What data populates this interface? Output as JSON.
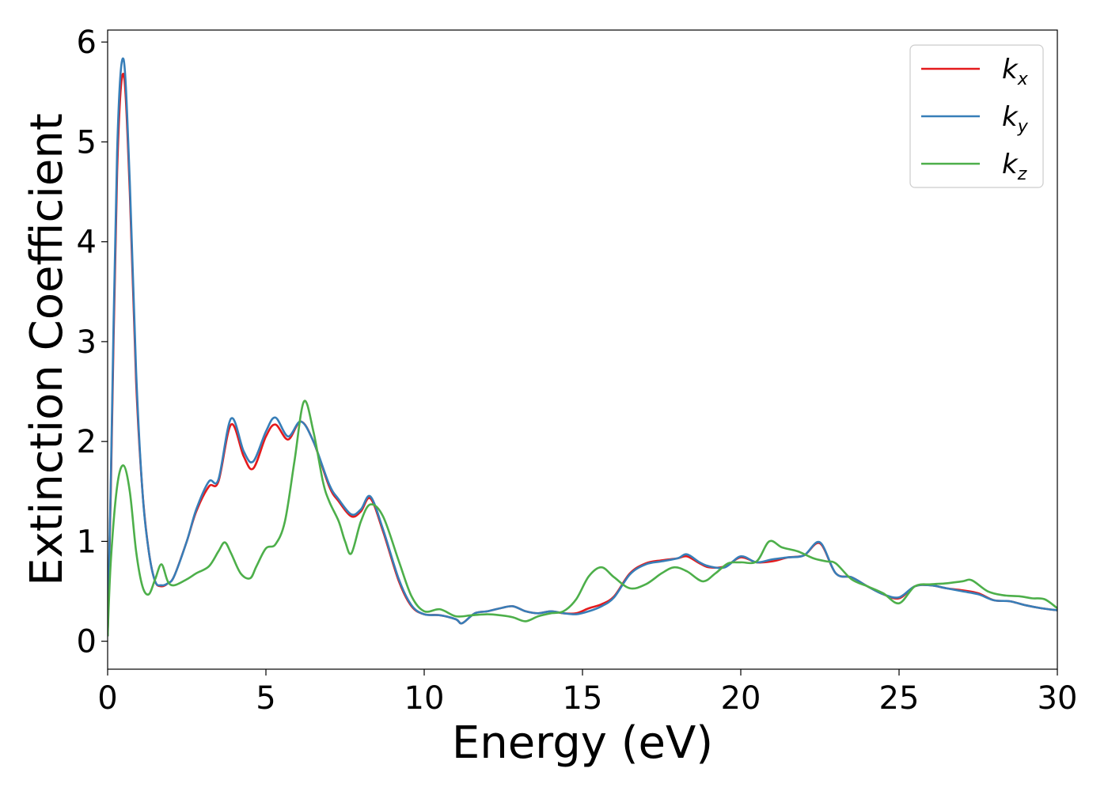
{
  "chart_data": {
    "type": "line",
    "title": "",
    "xlabel": "Energy (eV)",
    "ylabel": "Extinction Coefficient",
    "xlim": [
      0,
      30
    ],
    "ylim": [
      -0.28,
      6.12
    ],
    "xticks": [
      0,
      5,
      10,
      15,
      20,
      25,
      30
    ],
    "yticks": [
      0,
      1,
      2,
      3,
      4,
      5,
      6
    ],
    "grid": false,
    "legend_position": "top-right",
    "series": [
      {
        "name": "k",
        "subscript": "x",
        "color": "#e41a1c",
        "x": [
          0,
          0.1,
          0.3,
          0.5,
          0.7,
          0.9,
          1.1,
          1.3,
          1.5,
          1.7,
          1.9,
          2.1,
          2.5,
          2.8,
          3.2,
          3.5,
          3.9,
          4.3,
          4.6,
          5.0,
          5.3,
          5.7,
          6.1,
          6.5,
          7.0,
          7.3,
          7.7,
          8.0,
          8.3,
          8.7,
          9.2,
          9.6,
          10.0,
          10.5,
          11.0,
          11.2,
          11.6,
          12.0,
          12.4,
          12.8,
          13.2,
          13.6,
          14.0,
          14.4,
          14.8,
          15.2,
          15.6,
          16.0,
          16.5,
          17.0,
          17.5,
          18.0,
          18.3,
          18.7,
          19.0,
          19.5,
          20.0,
          20.5,
          21.0,
          21.5,
          22.0,
          22.5,
          23.0,
          23.5,
          24.0,
          24.5,
          25.0,
          25.5,
          26.0,
          26.5,
          27.0,
          27.5,
          28.0,
          28.5,
          29.0,
          29.5,
          30.0
        ],
        "y": [
          0.05,
          1.5,
          4.7,
          5.68,
          4.5,
          2.6,
          1.5,
          0.9,
          0.6,
          0.55,
          0.58,
          0.65,
          1.0,
          1.3,
          1.55,
          1.6,
          2.17,
          1.85,
          1.73,
          2.05,
          2.17,
          2.02,
          2.2,
          2.0,
          1.55,
          1.4,
          1.25,
          1.3,
          1.43,
          1.1,
          0.6,
          0.35,
          0.27,
          0.26,
          0.22,
          0.18,
          0.28,
          0.3,
          0.33,
          0.35,
          0.3,
          0.28,
          0.3,
          0.28,
          0.28,
          0.33,
          0.37,
          0.45,
          0.68,
          0.78,
          0.81,
          0.83,
          0.85,
          0.78,
          0.74,
          0.75,
          0.84,
          0.79,
          0.8,
          0.84,
          0.86,
          0.98,
          0.68,
          0.64,
          0.55,
          0.47,
          0.43,
          0.55,
          0.56,
          0.53,
          0.51,
          0.48,
          0.41,
          0.4,
          0.36,
          0.33,
          0.31
        ]
      },
      {
        "name": "k",
        "subscript": "y",
        "color": "#377eb8",
        "x": [
          0,
          0.1,
          0.3,
          0.5,
          0.7,
          0.9,
          1.1,
          1.3,
          1.5,
          1.7,
          1.9,
          2.1,
          2.5,
          2.8,
          3.2,
          3.5,
          3.9,
          4.3,
          4.6,
          5.0,
          5.3,
          5.7,
          6.1,
          6.5,
          7.0,
          7.3,
          7.7,
          8.0,
          8.3,
          8.7,
          9.2,
          9.6,
          10.0,
          10.5,
          11.0,
          11.2,
          11.6,
          12.0,
          12.4,
          12.8,
          13.2,
          13.6,
          14.0,
          14.4,
          14.8,
          15.2,
          15.6,
          16.0,
          16.5,
          17.0,
          17.5,
          18.0,
          18.3,
          18.7,
          19.0,
          19.5,
          20.0,
          20.5,
          21.0,
          21.5,
          22.0,
          22.5,
          23.0,
          23.5,
          24.0,
          24.5,
          25.0,
          25.5,
          26.0,
          26.5,
          27.0,
          27.5,
          28.0,
          28.5,
          29.0,
          29.5,
          30.0
        ],
        "y": [
          0.05,
          1.6,
          4.9,
          5.83,
          4.6,
          2.7,
          1.5,
          0.9,
          0.6,
          0.56,
          0.58,
          0.65,
          1.0,
          1.32,
          1.6,
          1.62,
          2.23,
          1.9,
          1.8,
          2.1,
          2.24,
          2.05,
          2.2,
          2.0,
          1.57,
          1.42,
          1.27,
          1.32,
          1.45,
          1.12,
          0.62,
          0.36,
          0.27,
          0.26,
          0.22,
          0.18,
          0.28,
          0.3,
          0.33,
          0.35,
          0.3,
          0.28,
          0.3,
          0.28,
          0.27,
          0.3,
          0.35,
          0.44,
          0.67,
          0.77,
          0.8,
          0.83,
          0.87,
          0.79,
          0.75,
          0.74,
          0.85,
          0.79,
          0.82,
          0.84,
          0.86,
          0.99,
          0.68,
          0.64,
          0.55,
          0.47,
          0.44,
          0.55,
          0.56,
          0.53,
          0.5,
          0.47,
          0.41,
          0.4,
          0.36,
          0.33,
          0.31
        ]
      },
      {
        "name": "k",
        "subscript": "z",
        "color": "#4daf4a",
        "x": [
          0,
          0.1,
          0.3,
          0.5,
          0.7,
          0.9,
          1.1,
          1.3,
          1.5,
          1.7,
          1.9,
          2.1,
          2.5,
          2.8,
          3.2,
          3.5,
          3.7,
          3.9,
          4.2,
          4.5,
          4.7,
          5.0,
          5.3,
          5.6,
          5.9,
          6.2,
          6.5,
          6.8,
          7.0,
          7.3,
          7.5,
          7.7,
          8.0,
          8.3,
          8.7,
          9.2,
          9.6,
          10.0,
          10.5,
          11.0,
          11.5,
          12.0,
          12.4,
          12.8,
          13.2,
          13.6,
          14.0,
          14.4,
          14.8,
          15.2,
          15.6,
          16.0,
          16.5,
          17.0,
          17.5,
          17.9,
          18.3,
          18.8,
          19.2,
          19.6,
          20.0,
          20.5,
          20.9,
          21.3,
          21.8,
          22.3,
          22.7,
          23.0,
          23.5,
          24.0,
          24.5,
          25.0,
          25.5,
          26.0,
          26.5,
          27.0,
          27.3,
          27.8,
          28.3,
          28.8,
          29.2,
          29.6,
          30.0
        ],
        "y": [
          0.05,
          0.8,
          1.55,
          1.76,
          1.5,
          0.9,
          0.55,
          0.47,
          0.62,
          0.77,
          0.6,
          0.56,
          0.62,
          0.68,
          0.75,
          0.9,
          0.99,
          0.88,
          0.68,
          0.63,
          0.75,
          0.93,
          0.97,
          1.2,
          1.8,
          2.4,
          2.1,
          1.6,
          1.4,
          1.2,
          1.0,
          0.88,
          1.2,
          1.37,
          1.25,
          0.8,
          0.45,
          0.3,
          0.32,
          0.25,
          0.26,
          0.27,
          0.26,
          0.24,
          0.2,
          0.25,
          0.28,
          0.3,
          0.42,
          0.65,
          0.74,
          0.64,
          0.53,
          0.57,
          0.68,
          0.74,
          0.7,
          0.6,
          0.68,
          0.78,
          0.79,
          0.8,
          1.0,
          0.94,
          0.9,
          0.83,
          0.8,
          0.78,
          0.62,
          0.55,
          0.48,
          0.38,
          0.55,
          0.57,
          0.58,
          0.6,
          0.61,
          0.5,
          0.46,
          0.45,
          0.43,
          0.42,
          0.33
        ]
      }
    ]
  }
}
